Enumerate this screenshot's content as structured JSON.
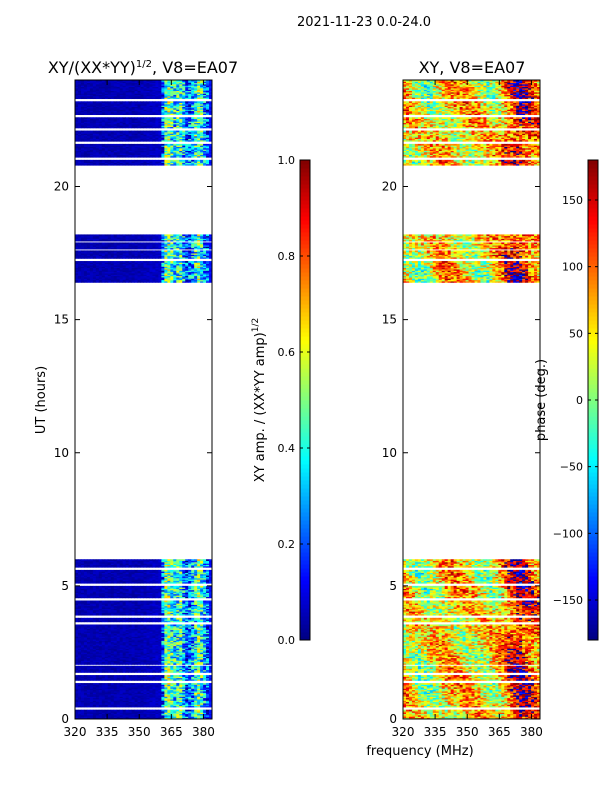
{
  "figure": {
    "suptitle": "2021-11-23 0.0-24.0"
  },
  "chart_data": [
    {
      "type": "heatmap",
      "title_main": "XY/(XX*YY)",
      "title_exp": "1/2",
      "title_tail": ", V8=EA07",
      "xlabel": "",
      "ylabel": "UT (hours)",
      "xlim": [
        320,
        384
      ],
      "ylim": [
        0,
        24
      ],
      "xticks": [
        320,
        335,
        350,
        365,
        380
      ],
      "yticks": [
        0,
        5,
        10,
        15,
        20
      ],
      "colormap": "jet",
      "colorbar": {
        "label_main": "XY amp. / (XX*YY amp)",
        "label_exp": "1/2",
        "range": [
          0.0,
          1.0
        ],
        "ticks": [
          "0.0",
          "0.2",
          "0.4",
          "0.6",
          "0.8",
          "1.0"
        ],
        "tick_values": [
          0.0,
          0.2,
          0.4,
          0.6,
          0.8,
          1.0
        ]
      },
      "data_time_ranges_hours": [
        [
          0.0,
          6.0
        ],
        [
          16.4,
          18.2
        ],
        [
          20.8,
          24.0
        ]
      ],
      "missing_time_bands_hours": [
        [
          0.35,
          0.45
        ],
        [
          1.35,
          1.45
        ],
        [
          1.65,
          1.75
        ],
        [
          2.0,
          2.05
        ],
        [
          3.55,
          3.65
        ],
        [
          3.8,
          3.9
        ],
        [
          4.45,
          4.55
        ],
        [
          5.0,
          5.1
        ],
        [
          5.6,
          5.72
        ],
        [
          17.2,
          17.28
        ],
        [
          17.6,
          17.66
        ],
        [
          17.9,
          17.95
        ],
        [
          21.0,
          21.1
        ],
        [
          21.6,
          21.7
        ],
        [
          22.1,
          22.2
        ],
        [
          22.6,
          22.7
        ],
        [
          23.2,
          23.3
        ]
      ],
      "mean_value_by_frequency_MHz": {
        "frequency": [
          320,
          335,
          350,
          360,
          363,
          366,
          369,
          372,
          375,
          378,
          381,
          384
        ],
        "value": [
          0.05,
          0.05,
          0.05,
          0.07,
          0.55,
          0.35,
          0.45,
          0.2,
          0.3,
          0.5,
          0.25,
          0.1
        ]
      }
    },
    {
      "type": "heatmap",
      "title": "XY, V8=EA07",
      "xlabel": "frequency (MHz)",
      "ylabel": "",
      "xlim": [
        320,
        384
      ],
      "ylim": [
        0,
        24
      ],
      "xticks": [
        320,
        335,
        350,
        365,
        380
      ],
      "yticks": [
        0,
        5,
        10,
        15,
        20
      ],
      "colormap": "jet",
      "colorbar": {
        "label": "phase (deg.)",
        "range": [
          -180,
          180
        ],
        "ticks": [
          "−150",
          "−100",
          "−50",
          "0",
          "50",
          "100",
          "150"
        ],
        "tick_values": [
          -150,
          -100,
          -50,
          0,
          50,
          100,
          150
        ]
      },
      "data_time_ranges_hours": [
        [
          0.0,
          6.0
        ],
        [
          16.4,
          18.2
        ],
        [
          20.8,
          24.0
        ]
      ],
      "missing_time_bands_hours": [
        [
          0.35,
          0.45
        ],
        [
          1.35,
          1.45
        ],
        [
          1.65,
          1.75
        ],
        [
          2.0,
          2.05
        ],
        [
          3.55,
          3.65
        ],
        [
          3.8,
          3.9
        ],
        [
          4.45,
          4.55
        ],
        [
          5.0,
          5.1
        ],
        [
          5.6,
          5.72
        ],
        [
          17.2,
          17.28
        ],
        [
          17.6,
          17.66
        ],
        [
          17.9,
          17.95
        ],
        [
          21.0,
          21.1
        ],
        [
          21.6,
          21.7
        ],
        [
          22.1,
          22.2
        ],
        [
          22.6,
          22.7
        ],
        [
          23.2,
          23.3
        ]
      ],
      "mean_phase_by_frequency_MHz": {
        "frequency": [
          320,
          330,
          340,
          350,
          360,
          365,
          370,
          375,
          380,
          384
        ],
        "value": [
          60,
          20,
          70,
          55,
          40,
          65,
          120,
          150,
          110,
          90
        ]
      }
    }
  ]
}
